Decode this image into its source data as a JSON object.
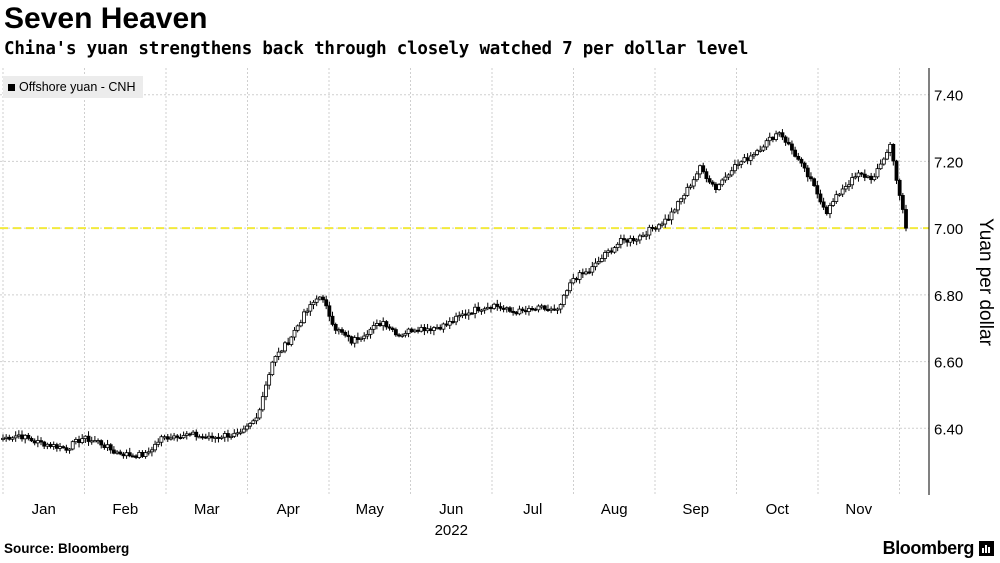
{
  "title": "Seven Heaven",
  "subtitle": "China's yuan strengthens back through closely watched 7 per dollar level",
  "source": "Source: Bloomberg",
  "brand": "Bloomberg",
  "colors": {
    "candle": "#000000",
    "reference_line": "#f2ea3c",
    "grid": "#cfcfcf",
    "legend_bg": "#ececec"
  },
  "chart_data": {
    "type": "candlestick",
    "series_name": "Offshore yuan - CNH",
    "ylabel": "Yuan per dollar",
    "xlabel": "2022",
    "x_tick_labels": [
      "Jan",
      "Feb",
      "Mar",
      "Apr",
      "May",
      "Jun",
      "Jul",
      "Aug",
      "Sep",
      "Oct",
      "Nov"
    ],
    "y_ticks": [
      6.4,
      6.6,
      6.8,
      7.0,
      7.2,
      7.4
    ],
    "y_tick_labels": [
      "6.40",
      "6.60",
      "6.80",
      "7.00",
      "7.20",
      "7.40"
    ],
    "ylim": [
      6.2,
      7.48
    ],
    "reference_line": 7.0,
    "grid": true,
    "legend": "top-left",
    "weekly_close": [
      6.37,
      6.38,
      6.36,
      6.35,
      6.34,
      6.37,
      6.36,
      6.33,
      6.32,
      6.32,
      6.37,
      6.38,
      6.38,
      6.37,
      6.38,
      6.38,
      6.43,
      6.6,
      6.66,
      6.74,
      6.8,
      6.7,
      6.66,
      6.69,
      6.72,
      6.68,
      6.7,
      6.7,
      6.71,
      6.74,
      6.76,
      6.77,
      6.75,
      6.75,
      6.76,
      6.75,
      6.85,
      6.87,
      6.92,
      6.96,
      6.97,
      7.0,
      7.03,
      7.1,
      7.18,
      7.12,
      7.18,
      7.21,
      7.25,
      7.29,
      7.22,
      7.14,
      7.05,
      7.12,
      7.16,
      7.15,
      7.25,
      7.0
    ]
  }
}
